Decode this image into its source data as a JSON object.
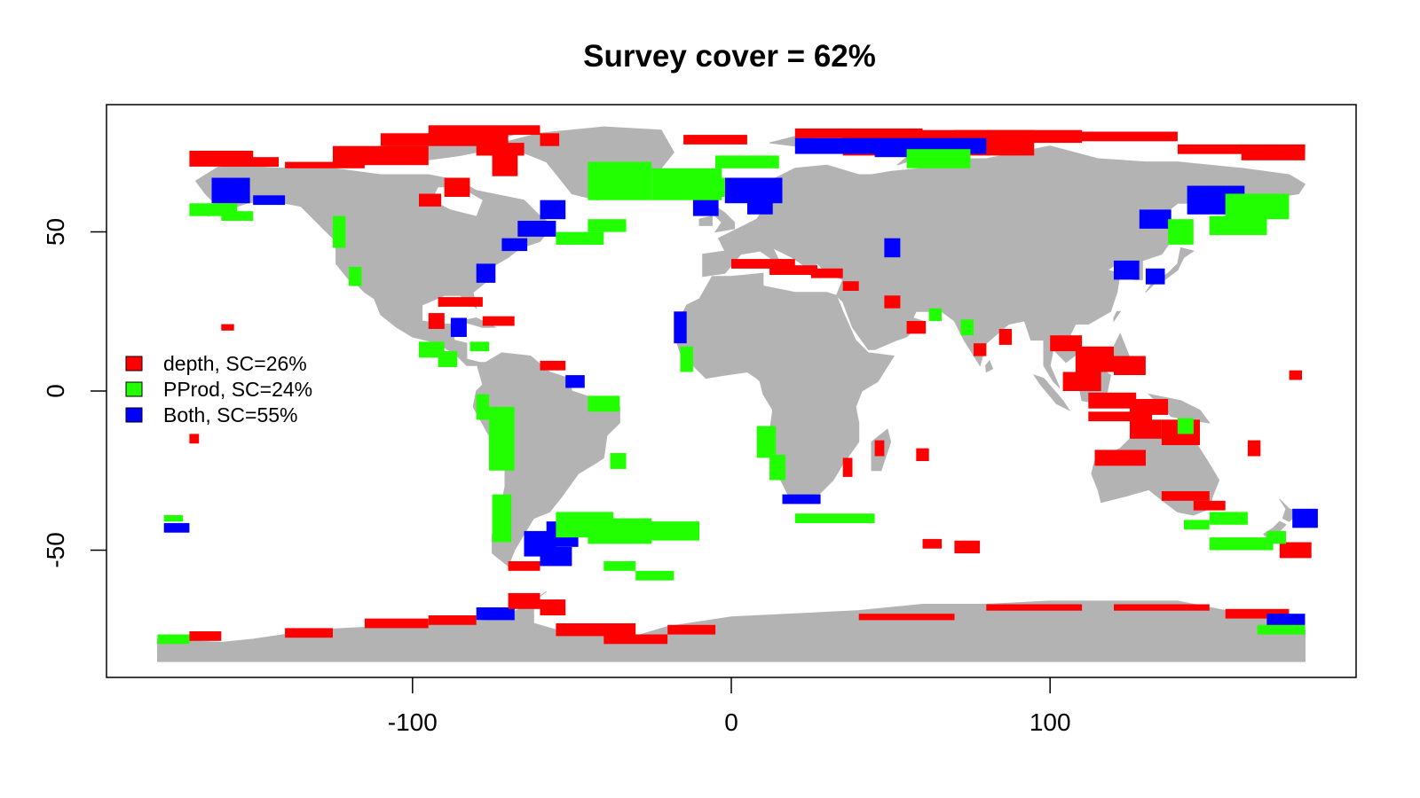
{
  "title": "Survey cover = 62%",
  "colors": {
    "land": "#b3b3b3",
    "depth": "#ff0000",
    "pprod": "#22ff00",
    "both": "#0000ff",
    "axis": "#000000",
    "background": "#ffffff"
  },
  "axes": {
    "x_ticks": [
      {
        "value": -100,
        "label": "-100"
      },
      {
        "value": 0,
        "label": "0"
      },
      {
        "value": 100,
        "label": "100"
      }
    ],
    "y_ticks": [
      {
        "value": 50,
        "label": "50"
      },
      {
        "value": 0,
        "label": "0"
      },
      {
        "value": -50,
        "label": "-50"
      }
    ],
    "x_range": [
      -196,
      196
    ],
    "y_range": [
      -90,
      90
    ]
  },
  "legend": {
    "placement": "left",
    "items": [
      {
        "key": "depth",
        "label": "depth, SC=26%",
        "color": "#ff0000"
      },
      {
        "key": "pprod",
        "label": "PProd, SC=24%",
        "color": "#22ff00"
      },
      {
        "key": "both",
        "label": "Both, SC=55%",
        "color": "#0000ff"
      }
    ]
  },
  "chart_data": {
    "type": "map",
    "projection": "longitude-latitude",
    "title": "Survey cover = 62%",
    "categories": [
      "depth",
      "PProd",
      "Both"
    ],
    "survey_cover_percent": {
      "total": 62,
      "depth": 26,
      "PProd": 24,
      "Both": 55
    },
    "xlim": [
      -196,
      196
    ],
    "ylim": [
      -90,
      90
    ],
    "grid": false,
    "legend_placement": "left"
  }
}
